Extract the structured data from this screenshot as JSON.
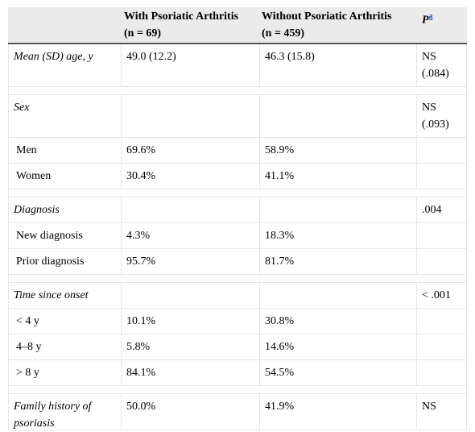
{
  "header": {
    "col1_line1": "With Psoriatic Arthritis",
    "col1_line2": "(n = 69)",
    "col2_line1": "Without Psoriatic Arthritis",
    "col2_line2": "(n = 459)",
    "col3_label": "P",
    "col3_sup": "a"
  },
  "rows": {
    "age": {
      "label": "Mean (SD) age, y",
      "with": "49.0 (12.2)",
      "without": "46.3 (15.8)",
      "p_line1": "NS",
      "p_line2": "(.084)"
    },
    "sex": {
      "label": "Sex",
      "p_line1": "NS",
      "p_line2": "(.093)"
    },
    "men": {
      "label": "Men",
      "with": "69.6%",
      "without": "58.9%"
    },
    "women": {
      "label": "Women",
      "with": "30.4%",
      "without": "41.1%"
    },
    "diagnosis": {
      "label": "Diagnosis",
      "p": ".004"
    },
    "new_diag": {
      "label": "New diagnosis",
      "with": "4.3%",
      "without": "18.3%"
    },
    "prior_diag": {
      "label": "Prior diagnosis",
      "with": "95.7%",
      "without": "81.7%"
    },
    "onset": {
      "label": "Time since onset",
      "p": "< .001"
    },
    "lt4": {
      "label": "< 4 y",
      "with": "10.1%",
      "without": "30.8%"
    },
    "y4to8": {
      "label": "4–8 y",
      "with": "5.8%",
      "without": "14.6%"
    },
    "gt8": {
      "label": "> 8 y",
      "with": "84.1%",
      "without": "54.5%"
    },
    "family": {
      "label_line1": "Family history of",
      "label_line2": "psoriasis",
      "with": "50.0%",
      "without": "41.9%",
      "p": "NS"
    }
  }
}
